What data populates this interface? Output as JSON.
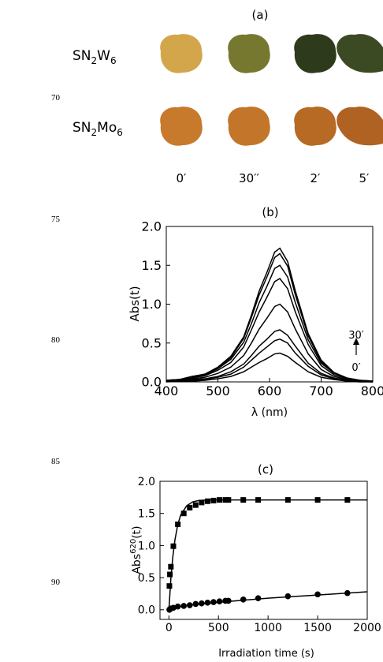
{
  "line_numbers": [
    "70",
    "75",
    "80",
    "85",
    "90"
  ],
  "photo_panel": {
    "title": "(a)",
    "rows": [
      [
        "SN",
        "2",
        "W",
        "6"
      ],
      [
        "SN",
        "2",
        "Mo",
        "6"
      ]
    ],
    "columns": [
      "0′",
      "30′′",
      "2′",
      "5′"
    ]
  },
  "chart_data": [
    {
      "type": "line",
      "title": "(b)",
      "x_label": "λ (nm)",
      "y_label": "Abs(t)",
      "x": [
        400,
        425,
        450,
        475,
        500,
        525,
        550,
        565,
        580,
        595,
        610,
        620,
        635,
        650,
        675,
        700,
        725,
        750,
        775,
        800
      ],
      "series": [
        {
          "color": "#000000",
          "values": [
            0.0,
            0.01,
            0.01,
            0.02,
            0.04,
            0.07,
            0.13,
            0.19,
            0.25,
            0.3,
            0.36,
            0.37,
            0.33,
            0.25,
            0.13,
            0.06,
            0.03,
            0.01,
            0.0,
            0.0
          ]
        },
        {
          "color": "#000000",
          "values": [
            0.01,
            0.01,
            0.02,
            0.03,
            0.06,
            0.1,
            0.19,
            0.28,
            0.37,
            0.45,
            0.53,
            0.55,
            0.5,
            0.37,
            0.2,
            0.09,
            0.04,
            0.02,
            0.01,
            0.0
          ]
        },
        {
          "color": "#000000",
          "values": [
            0.01,
            0.01,
            0.03,
            0.04,
            0.07,
            0.13,
            0.23,
            0.34,
            0.46,
            0.55,
            0.65,
            0.67,
            0.6,
            0.46,
            0.24,
            0.11,
            0.05,
            0.02,
            0.01,
            0.0
          ]
        },
        {
          "color": "#000000",
          "values": [
            0.01,
            0.02,
            0.04,
            0.06,
            0.11,
            0.19,
            0.34,
            0.5,
            0.68,
            0.82,
            0.97,
            1.0,
            0.9,
            0.68,
            0.36,
            0.16,
            0.07,
            0.03,
            0.01,
            0.01
          ]
        },
        {
          "color": "#000000",
          "values": [
            0.01,
            0.03,
            0.05,
            0.08,
            0.15,
            0.25,
            0.45,
            0.67,
            0.9,
            1.09,
            1.29,
            1.33,
            1.2,
            0.9,
            0.48,
            0.21,
            0.09,
            0.04,
            0.01,
            0.01
          ]
        },
        {
          "color": "#000000",
          "values": [
            0.02,
            0.03,
            0.06,
            0.09,
            0.17,
            0.29,
            0.51,
            0.75,
            1.02,
            1.23,
            1.46,
            1.5,
            1.35,
            1.02,
            0.54,
            0.24,
            0.11,
            0.05,
            0.02,
            0.01
          ]
        },
        {
          "color": "#000000",
          "values": [
            0.02,
            0.03,
            0.07,
            0.1,
            0.18,
            0.31,
            0.56,
            0.83,
            1.12,
            1.35,
            1.6,
            1.65,
            1.49,
            1.12,
            0.59,
            0.26,
            0.12,
            0.05,
            0.02,
            0.01
          ]
        },
        {
          "color": "#000000",
          "values": [
            0.02,
            0.03,
            0.07,
            0.1,
            0.19,
            0.33,
            0.58,
            0.86,
            1.17,
            1.41,
            1.67,
            1.72,
            1.55,
            1.17,
            0.62,
            0.28,
            0.12,
            0.05,
            0.02,
            0.01
          ]
        }
      ],
      "xlim": [
        400,
        800
      ],
      "xticks": [
        400,
        500,
        600,
        700,
        800
      ],
      "ylim": [
        0,
        2
      ],
      "yticks": [
        {
          "value": 0,
          "label": "0.0"
        },
        0.5,
        {
          "value": 1,
          "label": "1.0"
        },
        1.5,
        {
          "value": 2,
          "label": "2.0"
        }
      ],
      "annotations": [
        "30′",
        "0′"
      ]
    },
    {
      "type": "scatter",
      "title": "(c)",
      "x_label": "Irradiation time (s)",
      "y_label": [
        "Abs",
        "620",
        "(t)"
      ],
      "series": [
        {
          "marker": "square",
          "color": "#000000",
          "x": [
            5,
            10,
            20,
            45,
            90,
            150,
            210,
            270,
            330,
            390,
            450,
            510,
            570,
            600,
            750,
            900,
            1200,
            1500,
            1800
          ],
          "values": [
            0.37,
            0.55,
            0.67,
            0.99,
            1.33,
            1.5,
            1.59,
            1.63,
            1.67,
            1.69,
            1.7,
            1.71,
            1.71,
            1.71,
            1.71,
            1.71,
            1.71,
            1.71,
            1.71
          ]
        },
        {
          "marker": "circle",
          "color": "#000000",
          "x": [
            5,
            10,
            20,
            45,
            90,
            150,
            210,
            270,
            330,
            390,
            450,
            510,
            570,
            600,
            750,
            900,
            1200,
            1500,
            1800
          ],
          "values": [
            0.0,
            0.01,
            0.02,
            0.03,
            0.05,
            0.06,
            0.07,
            0.09,
            0.1,
            0.11,
            0.12,
            0.13,
            0.14,
            0.14,
            0.16,
            0.18,
            0.21,
            0.24,
            0.26
          ]
        },
        {
          "marker": "line",
          "color": "#000000",
          "x": [
            0,
            20,
            40,
            60,
            90,
            120,
            180,
            240,
            300,
            400,
            500,
            700,
            1000,
            2000
          ],
          "values": [
            0,
            0.49,
            0.83,
            1.08,
            1.33,
            1.48,
            1.62,
            1.68,
            1.7,
            1.71,
            1.71,
            1.71,
            1.71,
            1.71
          ]
        },
        {
          "marker": "line",
          "color": "#000000",
          "x": [
            0,
            50,
            100,
            200,
            400,
            600,
            1000,
            1500,
            2000
          ],
          "values": [
            0,
            0.03,
            0.05,
            0.07,
            0.1,
            0.13,
            0.18,
            0.23,
            0.28
          ]
        }
      ],
      "xlim": [
        -90,
        2000
      ],
      "xticks": [
        0,
        500,
        1000,
        1500,
        2000
      ],
      "ylim": [
        -0.15,
        2
      ],
      "yticks": [
        {
          "value": 0,
          "label": "0.0"
        },
        0.5,
        {
          "value": 1,
          "label": "1.0"
        },
        1.5,
        {
          "value": 2,
          "label": "2.0"
        }
      ]
    }
  ]
}
